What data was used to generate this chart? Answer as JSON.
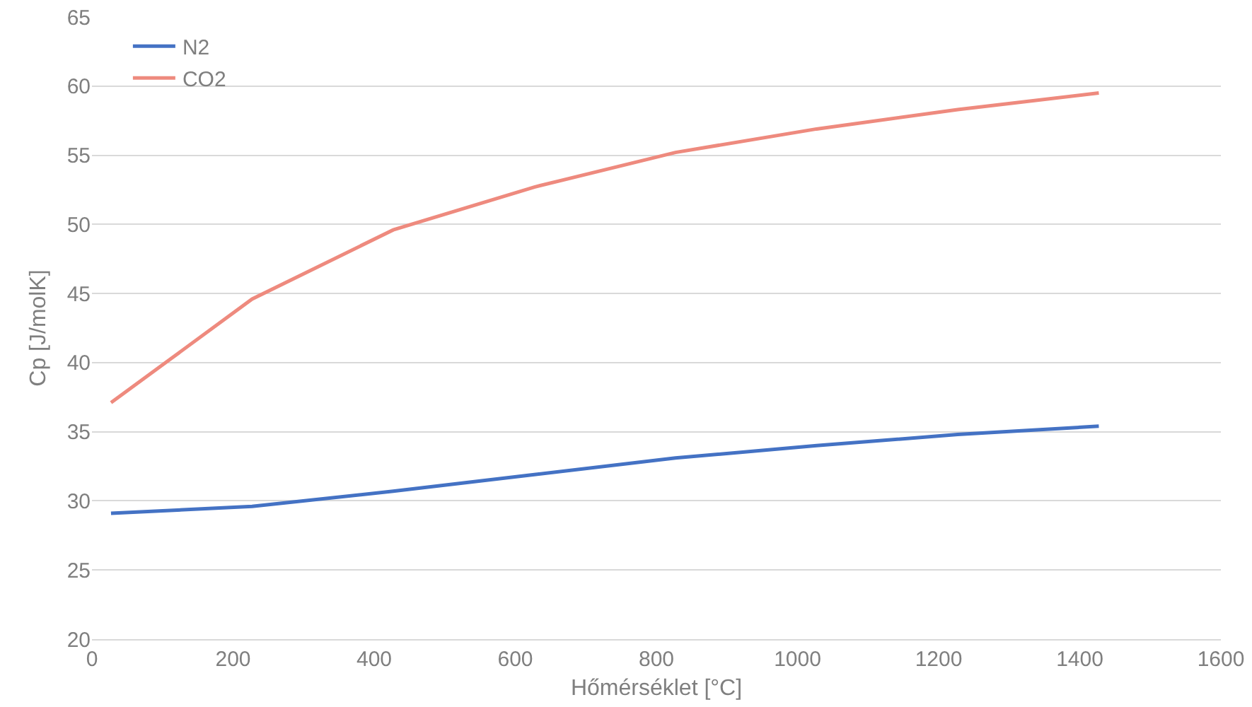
{
  "chart_data": {
    "type": "line",
    "xlabel": "Hőmérséklet [°C]",
    "ylabel": "Cp [J/molK]",
    "x": [
      27,
      227,
      427,
      627,
      827,
      1027,
      1227,
      1427
    ],
    "series": [
      {
        "name": "N2",
        "color": "#4472c4",
        "values": [
          29.1,
          29.6,
          30.7,
          31.9,
          33.1,
          34.0,
          34.8,
          35.4
        ]
      },
      {
        "name": "CO2",
        "color": "#ee8a7e",
        "values": [
          37.1,
          44.6,
          49.6,
          52.7,
          55.2,
          56.9,
          58.3,
          59.5
        ]
      }
    ],
    "xlim": [
      0,
      1600
    ],
    "xticks": [
      0,
      200,
      400,
      600,
      800,
      1000,
      1200,
      1400,
      1600
    ],
    "ylim": [
      20,
      65
    ],
    "yticks": [
      20,
      25,
      30,
      35,
      40,
      45,
      50,
      55,
      60,
      65
    ],
    "grid": "y",
    "legend": "top left",
    "marker": "none",
    "line_style": "solid"
  }
}
